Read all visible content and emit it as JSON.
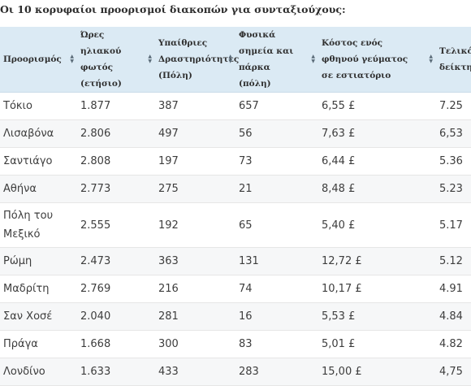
{
  "caption": "Οι 10 κορυφαίοι προορισμοί διακοπών για συνταξιούχους:",
  "headers": [
    {
      "label": "Προορισμός"
    },
    {
      "label": "Ώρες ηλιακού φωτός (ετήσιο)"
    },
    {
      "label": "Υπαίθριες Δραστηριότητες (Πόλη)"
    },
    {
      "label": "Φυσικά σημεία και πάρκα (πόλη)"
    },
    {
      "label": "Κόστος ενός φθηνού γεύματος σε εστιατόριο"
    },
    {
      "label": "Τελικός δείκτης"
    }
  ],
  "rows": [
    {
      "destination": "Τόκιο",
      "sunshine": "1.877",
      "outdoor": "387",
      "parks": "657",
      "meal_cost": "6,55 £",
      "score": "7.25"
    },
    {
      "destination": "Λισαβόνα",
      "sunshine": "2.806",
      "outdoor": "497",
      "parks": "56",
      "meal_cost": "7,63 £",
      "score": "6,53"
    },
    {
      "destination": "Σαντιάγο",
      "sunshine": "2.808",
      "outdoor": "197",
      "parks": "73",
      "meal_cost": "6,44 £",
      "score": "5.36"
    },
    {
      "destination": "Αθήνα",
      "sunshine": "2.773",
      "outdoor": "275",
      "parks": "21",
      "meal_cost": "8,48 £",
      "score": "5.23"
    },
    {
      "destination": "Πόλη του Μεξικό",
      "sunshine": "2.555",
      "outdoor": "192",
      "parks": "65",
      "meal_cost": "5,40 £",
      "score": "5.17"
    },
    {
      "destination": "Ρώμη",
      "sunshine": "2.473",
      "outdoor": "363",
      "parks": "131",
      "meal_cost": "12,72 £",
      "score": "5.12"
    },
    {
      "destination": "Μαδρίτη",
      "sunshine": "2.769",
      "outdoor": "216",
      "parks": "74",
      "meal_cost": "10,17 £",
      "score": "4.91"
    },
    {
      "destination": "Σαν Χοσέ",
      "sunshine": "2.040",
      "outdoor": "281",
      "parks": "16",
      "meal_cost": "5,53 £",
      "score": "4.84"
    },
    {
      "destination": "Πράγα",
      "sunshine": "1.668",
      "outdoor": "300",
      "parks": "83",
      "meal_cost": "5,01 £",
      "score": "4.82"
    },
    {
      "destination": "Λονδίνο",
      "sunshine": "1.633",
      "outdoor": "433",
      "parks": "283",
      "meal_cost": "15,00 £",
      "score": "4,75"
    }
  ]
}
